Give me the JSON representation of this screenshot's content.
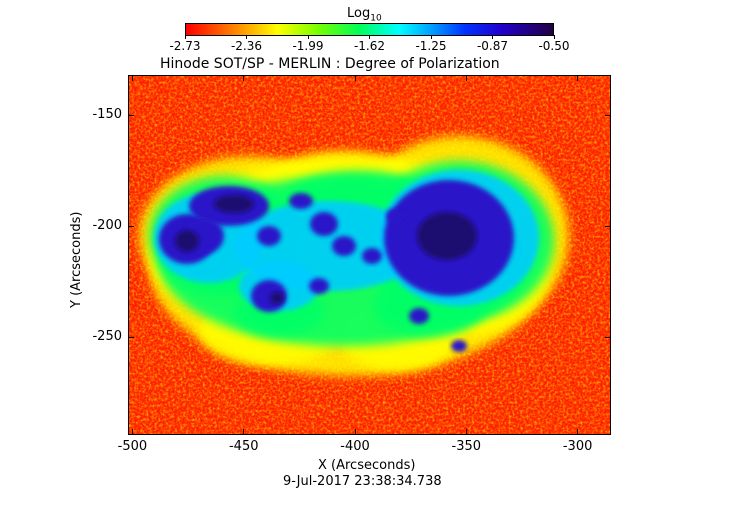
{
  "chart_data": {
    "type": "heatmap",
    "title": "Hinode SOT/SP - MERLIN : Degree of Polarization",
    "xlabel": "X (Arcseconds)",
    "ylabel": "Y (Arcseconds)",
    "date_label": "9-Jul-2017 23:38:34.738",
    "colorbar": {
      "label_base": "Log",
      "label_sub": "10",
      "ticks": [
        "-2.73",
        "-2.36",
        "-1.99",
        "-1.62",
        "-1.25",
        "-0.87",
        "-0.50"
      ],
      "range": [
        -2.73,
        -0.5
      ],
      "colormap": "red-orange-yellow-green-cyan-blue-violet"
    },
    "x_ticks": [
      "-500",
      "-450",
      "-400",
      "-350",
      "-300"
    ],
    "y_ticks": [
      "-150",
      "-200",
      "-250"
    ],
    "xlim": [
      -502,
      -285
    ],
    "ylim": [
      -294,
      -132
    ],
    "colors": {
      "low": "#ff1a00",
      "mid_low": "#ffff00",
      "mid": "#00ff66",
      "mid_high": "#00ccff",
      "high": "#2a18c8",
      "max": "#1a0a70"
    }
  }
}
